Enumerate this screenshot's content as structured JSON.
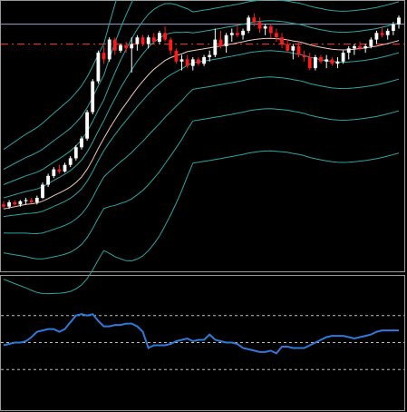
{
  "colors": {
    "background": "#000000",
    "frame": "#9a9a9a",
    "candle_up": "#ffffff",
    "candle_down": "#ff1a1a",
    "band_line": "#2aa6a0",
    "ma_line": "#f0c8b8",
    "horizontal_line": "#9aa6d0",
    "reference_dashed": "#ff2a2a",
    "oscillator_line": "#2f7ad8",
    "oscillator_levels": "#bdbdbd"
  },
  "chart_data": [
    {
      "type": "candlestick",
      "grid": false,
      "legend": "none",
      "x": [
        1,
        2,
        3,
        4,
        5,
        6,
        7,
        8,
        9,
        10,
        11,
        12,
        13,
        14,
        15,
        16,
        17,
        18,
        19,
        20,
        21,
        22,
        23,
        24,
        25,
        26,
        27,
        28,
        29,
        30,
        31,
        32,
        33,
        34,
        35,
        36,
        37,
        38,
        39,
        40,
        41,
        42,
        43,
        44,
        45,
        46,
        47,
        48,
        49,
        50,
        51,
        52,
        53,
        54,
        55,
        56,
        57,
        58,
        59,
        60,
        61,
        62,
        63,
        64,
        65,
        66,
        67,
        68,
        69,
        70,
        71,
        72
      ],
      "ohlc": [
        [
          90,
          91.5,
          88,
          89
        ],
        [
          89,
          92,
          88,
          91
        ],
        [
          91,
          92,
          89.5,
          90
        ],
        [
          90,
          92,
          89,
          91.5
        ],
        [
          91.5,
          93,
          90,
          92
        ],
        [
          92,
          93,
          90.5,
          91
        ],
        [
          91,
          94,
          90,
          93
        ],
        [
          93,
          100,
          92.5,
          99
        ],
        [
          99,
          104,
          98,
          103
        ],
        [
          103,
          107,
          102,
          106
        ],
        [
          106,
          108,
          104,
          105
        ],
        [
          105,
          109,
          104.5,
          108
        ],
        [
          108,
          112,
          107,
          111
        ],
        [
          111,
          117,
          110,
          116
        ],
        [
          116,
          121,
          115,
          120
        ],
        [
          120,
          133,
          119,
          132
        ],
        [
          132,
          147,
          131,
          146
        ],
        [
          146,
          160,
          145,
          159
        ],
        [
          159,
          162,
          154,
          156
        ],
        [
          156,
          166,
          155,
          165
        ],
        [
          165,
          166,
          158,
          160
        ],
        [
          160,
          163,
          159,
          162.5
        ],
        [
          162.5,
          164,
          159,
          161
        ],
        [
          161,
          166,
          150,
          163
        ],
        [
          163,
          167,
          160,
          166
        ],
        [
          166,
          167,
          162,
          163
        ],
        [
          163,
          167,
          161,
          166
        ],
        [
          166,
          168,
          163,
          164
        ],
        [
          164,
          169,
          163,
          168
        ],
        [
          168,
          171,
          164,
          165
        ],
        [
          165,
          166,
          158,
          160
        ],
        [
          160,
          161,
          154,
          155
        ],
        [
          155,
          158,
          151,
          156
        ],
        [
          156,
          158,
          152,
          153
        ],
        [
          153,
          157,
          151,
          156
        ],
        [
          156,
          157,
          153,
          154
        ],
        [
          154,
          158,
          153,
          157
        ],
        [
          157,
          160,
          155,
          158
        ],
        [
          158,
          170,
          157,
          165
        ],
        [
          165,
          169,
          161,
          162
        ],
        [
          162,
          168,
          159,
          167
        ],
        [
          167,
          170,
          164,
          168
        ],
        [
          168,
          172,
          166,
          167
        ],
        [
          167,
          170,
          165,
          169
        ],
        [
          169,
          176,
          168,
          175
        ],
        [
          175,
          177,
          171,
          173
        ],
        [
          173,
          175,
          168,
          170
        ],
        [
          170,
          172,
          167,
          171
        ],
        [
          171,
          172,
          166,
          168
        ],
        [
          168,
          170,
          164,
          166
        ],
        [
          166,
          168,
          161,
          163
        ],
        [
          163,
          165,
          159,
          160
        ],
        [
          160,
          163,
          156,
          162
        ],
        [
          162,
          164,
          157,
          158
        ],
        [
          158,
          160,
          155,
          157
        ],
        [
          157,
          159,
          151,
          152
        ],
        [
          152,
          158,
          151,
          157
        ],
        [
          157,
          158,
          154,
          155
        ],
        [
          155,
          158,
          152,
          156
        ],
        [
          156,
          157,
          153,
          154
        ],
        [
          154,
          157,
          152,
          155
        ],
        [
          155,
          160,
          154,
          159
        ],
        [
          159,
          162,
          156,
          161
        ],
        [
          161,
          163,
          158,
          162
        ],
        [
          162,
          164,
          160,
          161
        ],
        [
          161,
          163,
          159,
          162
        ],
        [
          162,
          166,
          161,
          165
        ],
        [
          165,
          169,
          163,
          168
        ],
        [
          168,
          171,
          166,
          167
        ],
        [
          167,
          170,
          165,
          169
        ],
        [
          169,
          173,
          167,
          172
        ],
        [
          172,
          176,
          170,
          175
        ]
      ],
      "moving_average": [
        88,
        88.5,
        89,
        89.5,
        90,
        90.3,
        90.7,
        91.5,
        92.7,
        94,
        95.2,
        96.5,
        98,
        100,
        102.5,
        106,
        110.5,
        115.5,
        120,
        124.5,
        128.5,
        132.5,
        136,
        139.5,
        143,
        146,
        149,
        151.5,
        153.5,
        155.5,
        156.8,
        157.8,
        158.5,
        159.5,
        160,
        160.4,
        160.8,
        161.2,
        161.7,
        162.1,
        162.6,
        163,
        163.5,
        164,
        164.6,
        165,
        165.3,
        165.5,
        165.6,
        165.4,
        165.2,
        164.9,
        164.4,
        164,
        163.4,
        162.6,
        162,
        161.5,
        161,
        160.6,
        160.4,
        160.3,
        160.4,
        160.6,
        160.9,
        161.2,
        161.6,
        162,
        162.6,
        163.2,
        163.9,
        164.6
      ],
      "bands": [
        {
          "offset": 4.5,
          "half_width": 1,
          "tail_shrink": 0
        },
        {
          "offset": -3,
          "half_width": 1,
          "tail_shrink": 0
        },
        {
          "offset": 12,
          "half_width": 1.6,
          "tail_shrink": 0
        },
        {
          "offset": -10,
          "half_width": 1.6,
          "tail_shrink": 0
        },
        {
          "offset": 19,
          "half_width": 2.3,
          "tail_shrink": 0
        },
        {
          "offset": -17,
          "half_width": 2.3,
          "tail_shrink": 0
        }
      ],
      "horizontal_lines": [
        172
      ],
      "reference_level": 163,
      "ylim": [
        60,
        183
      ]
    },
    {
      "type": "line",
      "grid": false,
      "legend": "none",
      "x": [
        1,
        2,
        3,
        4,
        5,
        6,
        7,
        8,
        9,
        10,
        11,
        12,
        13,
        14,
        15,
        16,
        17,
        18,
        19,
        20,
        21,
        22,
        23,
        24,
        25,
        26,
        27,
        28,
        29,
        30,
        31,
        32,
        33,
        34,
        35,
        36,
        37,
        38,
        39,
        40,
        41,
        42,
        43,
        44,
        45,
        46,
        47,
        48,
        49,
        50,
        51,
        52,
        53,
        54,
        55,
        56,
        57,
        58,
        59,
        60,
        61,
        62,
        63,
        64,
        65,
        66,
        67,
        68,
        69,
        70,
        71,
        72
      ],
      "values": [
        48,
        49,
        50,
        50,
        51,
        54,
        58,
        59,
        60,
        60,
        58,
        60,
        65,
        70,
        71,
        70,
        71,
        66,
        62,
        62,
        63,
        63,
        64,
        64,
        62,
        58,
        46,
        48,
        48,
        48,
        49,
        51,
        52,
        53,
        51,
        52,
        52,
        56,
        52,
        51,
        50,
        50,
        49,
        46,
        45,
        44,
        43,
        43,
        44,
        42,
        47,
        47,
        46,
        46,
        46,
        48,
        50,
        52,
        54,
        55,
        55,
        55,
        54,
        53,
        54,
        55,
        56,
        58,
        59,
        59,
        59,
        59
      ],
      "levels": [
        70,
        30
      ],
      "ylim": [
        0,
        100
      ]
    }
  ]
}
